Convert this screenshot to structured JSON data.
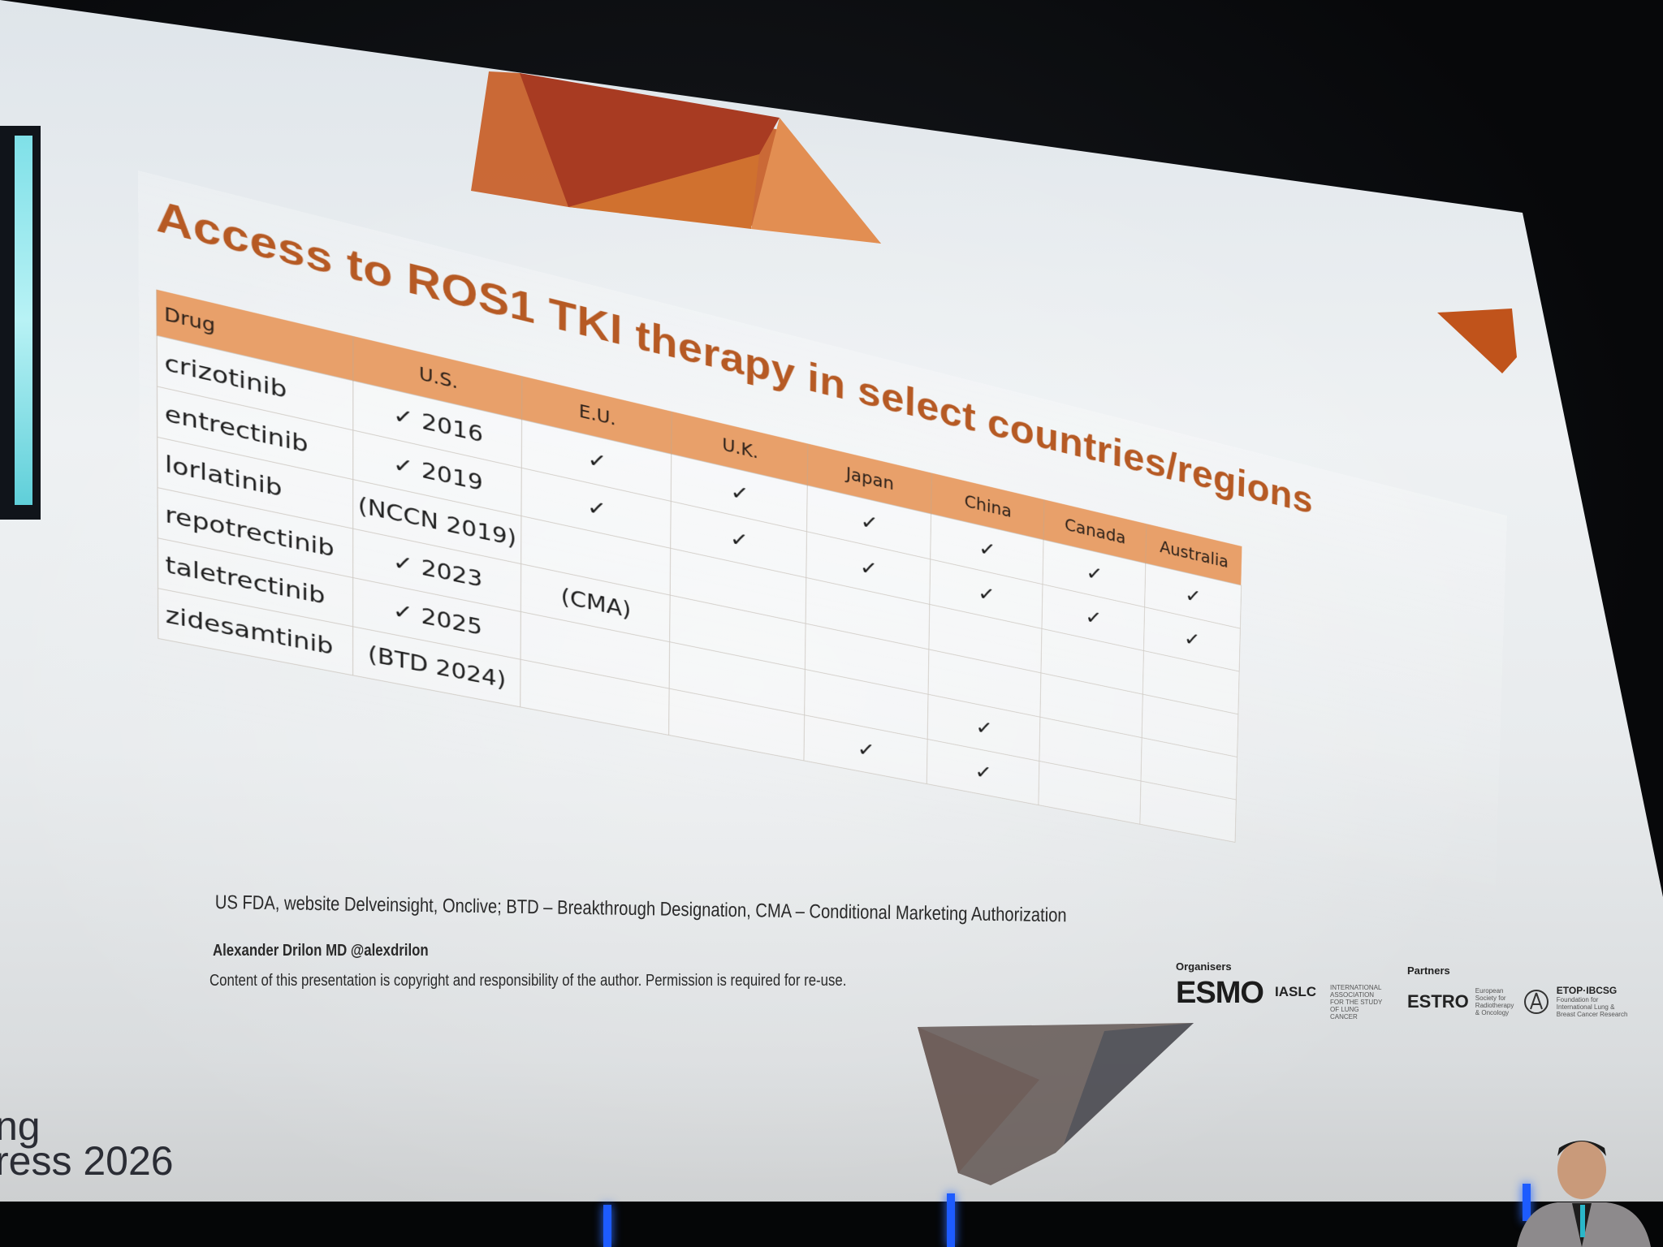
{
  "slide": {
    "title": "Access to ROS1 TKI therapy in select countries/regions",
    "table": {
      "headers": [
        "Drug",
        "U.S.",
        "E.U.",
        "U.K.",
        "Japan",
        "China",
        "Canada",
        "Australia"
      ],
      "rows": [
        [
          "crizotinib",
          "✓ 2016",
          "✓",
          "✓",
          "✓",
          "✓",
          "✓",
          "✓"
        ],
        [
          "entrectinib",
          "✓ 2019",
          "✓",
          "✓",
          "✓",
          "✓",
          "✓",
          "✓"
        ],
        [
          "lorlatinib",
          "(NCCN 2019)",
          "",
          "",
          "",
          "",
          "",
          ""
        ],
        [
          "repotrectinib",
          "✓ 2023",
          "(CMA)",
          "",
          "",
          "",
          "",
          ""
        ],
        [
          "taletrectinib",
          "✓ 2025",
          "",
          "",
          "",
          "✓",
          "",
          ""
        ],
        [
          "zidesamtinib",
          "(BTD 2024)",
          "",
          "",
          "✓",
          "✓",
          "",
          ""
        ]
      ]
    },
    "footnote": "US FDA, website Delveinsight, Onclive; BTD – Breakthrough Designation, CMA – Conditional Marketing Authorization",
    "author": "Alexander Drilon MD @alexdrilon",
    "copyright": "Content of this presentation is copyright and responsibility of the author. Permission is required for re-use.",
    "organisers_label": "Organisers",
    "partners_label": "Partners",
    "logos": {
      "esmo": "ESMO",
      "iaslc": "IASLC",
      "iaslc_sub": "INTERNATIONAL ASSOCIATION FOR THE STUDY OF LUNG CANCER",
      "estro": "ESTRO",
      "estro_sub": "European Society for Radiotherapy & Oncology",
      "etop": "ETOP·IBCSG",
      "etop_sub": "Foundation for International Lung & Breast Cancer Research"
    }
  },
  "congress_corner": {
    "line1": "ng",
    "line2": "ress 2026"
  },
  "colors": {
    "accent": "#b65a24",
    "header_bg": "#e8a06a",
    "screen_bg": "#eef1f3",
    "room": "#08090b"
  }
}
